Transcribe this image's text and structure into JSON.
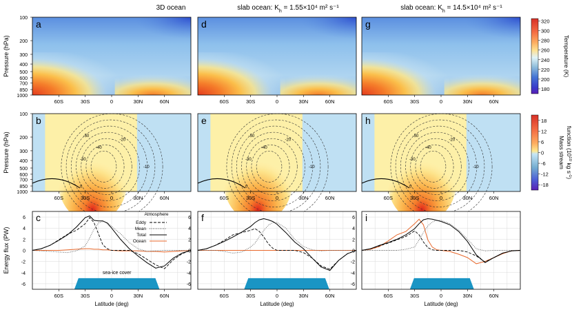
{
  "figure": {
    "column_titles": [
      "3D ocean",
      "slab ocean: K",
      "slab ocean: K"
    ],
    "column_title_parts": [
      {
        "lead": "3D ocean",
        "sub": "",
        "tail": ""
      },
      {
        "lead": "slab ocean: K",
        "sub": "h",
        "tail": " = 1.55×10⁴ m² s⁻¹"
      },
      {
        "lead": "slab ocean: K",
        "sub": "h",
        "tail": " = 14.5×10⁴ m² s⁻¹"
      }
    ],
    "panel_letters": [
      "a",
      "b",
      "c",
      "d",
      "e",
      "f",
      "g",
      "h",
      "i"
    ],
    "colors": {
      "ocean_line": "#e8672a",
      "sea_ice": "#1a95c4",
      "grid": "#d9d9d9"
    }
  },
  "chart_data": [
    {
      "type": "heatmap",
      "row": "temperature",
      "panels": [
        "a",
        "d",
        "g"
      ],
      "xlabel": "",
      "ylabel": "Pressure (hPa)",
      "x_ticks": [
        "60S",
        "30S",
        "0",
        "30N",
        "60N"
      ],
      "y_ticks": [
        100,
        200,
        300,
        400,
        500,
        600,
        700,
        850,
        1000
      ],
      "ylim": [
        1000,
        100
      ],
      "colorbar": {
        "label": "Temperature (K)",
        "ticks": [
          320,
          300,
          280,
          260,
          240,
          220,
          200,
          180
        ],
        "range": [
          170,
          325
        ]
      }
    },
    {
      "type": "heatmap",
      "row": "mass_stream_function",
      "panels": [
        "b",
        "e",
        "h"
      ],
      "xlabel": "",
      "ylabel": "Pressure (hPa)",
      "x_ticks": [
        "60S",
        "30S",
        "0",
        "30N",
        "60N"
      ],
      "y_ticks": [
        100,
        200,
        300,
        400,
        500,
        600,
        700,
        850,
        1000
      ],
      "contour_labels": [
        "-50",
        "-40",
        "-30",
        "-20",
        "-10",
        "0"
      ],
      "colorbar": {
        "label_main": "Mass stream",
        "label_unit": "function (10",
        "label_exp": "10",
        "label_tail": " kg s",
        "label_exp2": "-1",
        "label_close": ")",
        "ticks": [
          18,
          12,
          6,
          0,
          -6,
          -12,
          -18
        ],
        "range": [
          -21,
          21
        ]
      }
    },
    {
      "type": "line",
      "row": "energy_flux",
      "panels": [
        "c",
        "f",
        "i"
      ],
      "xlabel": "Latitude (deg)",
      "ylabel": "Energy flux (PW)",
      "x_ticks": [
        "60S",
        "30S",
        "0",
        "30N",
        "60N"
      ],
      "y_ticks": [
        6,
        4,
        2,
        0,
        -2,
        -4,
        -6
      ],
      "ylim": [
        -7,
        7
      ],
      "xlim": [
        -90,
        90
      ],
      "legend": {
        "header": "Atmosphere",
        "entries": [
          "Eddy",
          "Mean",
          "Total",
          "Ocean"
        ]
      },
      "annotation": "sea-ice cover",
      "series": [
        {
          "panel": "c",
          "x": [
            -90,
            -80,
            -70,
            -60,
            -50,
            -40,
            -30,
            -25,
            -20,
            -15,
            -10,
            -5,
            0,
            10,
            20,
            30,
            40,
            50,
            60,
            70,
            80,
            90
          ],
          "total": [
            0,
            0.3,
            0.9,
            1.8,
            2.8,
            4.2,
            5.9,
            6.2,
            5.4,
            5.3,
            5.3,
            4.9,
            4.0,
            2.0,
            0.3,
            -1.0,
            -2.2,
            -3.2,
            -2.8,
            -1.4,
            -0.5,
            0
          ],
          "eddy": [
            0,
            0.3,
            0.9,
            1.9,
            2.9,
            3.6,
            4.8,
            5.9,
            5.0,
            3.0,
            1.0,
            0.3,
            0,
            0,
            0,
            -0.6,
            -1.6,
            -2.6,
            -3.3,
            -1.7,
            -0.6,
            0
          ],
          "mean": [
            0,
            -0.1,
            -0.2,
            -0.3,
            -0.4,
            -0.1,
            0.8,
            2.2,
            3.8,
            4.9,
            5.2,
            5.0,
            4.3,
            3.0,
            1.4,
            0.3,
            -0.2,
            -0.1,
            0,
            0,
            0,
            0
          ],
          "ocean": [
            0,
            0,
            0,
            0,
            0.1,
            0.2,
            0.3,
            0.3,
            0.2,
            0.2,
            0.1,
            0.1,
            0,
            -0.1,
            -0.1,
            -0.1,
            -0.2,
            -0.2,
            -0.3,
            -0.2,
            -0.1,
            0
          ],
          "sea_ice": [
            -40,
            52
          ]
        },
        {
          "panel": "f",
          "x": [
            -90,
            -80,
            -70,
            -60,
            -50,
            -40,
            -30,
            -25,
            -20,
            -15,
            -10,
            -5,
            0,
            10,
            20,
            30,
            40,
            50,
            60,
            70,
            80,
            90
          ],
          "total": [
            0,
            0.3,
            0.9,
            1.6,
            2.4,
            3.3,
            4.3,
            5.0,
            5.5,
            5.7,
            5.5,
            5.2,
            4.7,
            3.2,
            1.5,
            0.3,
            -1.4,
            -3.0,
            -3.6,
            -1.8,
            -0.6,
            0
          ],
          "eddy": [
            0,
            0.3,
            0.9,
            1.8,
            2.8,
            3.2,
            3.6,
            3.9,
            3.4,
            2.4,
            1.2,
            0.4,
            0,
            0,
            0,
            -0.4,
            -1.4,
            -2.8,
            -3.4,
            -1.8,
            -0.6,
            0
          ],
          "mean": [
            0,
            0,
            0,
            -0.2,
            -0.5,
            -0.3,
            0.6,
            1.3,
            2.5,
            3.6,
            4.5,
            5.0,
            5.0,
            4.0,
            2.0,
            0.7,
            0.1,
            -0.1,
            0,
            0,
            0,
            0
          ],
          "ocean": [
            0,
            0,
            0,
            0,
            0,
            0,
            0,
            0,
            0,
            0,
            0,
            0,
            0,
            0,
            0,
            0,
            0,
            0,
            0,
            0,
            0,
            0
          ],
          "sea_ice": [
            -35,
            57
          ]
        },
        {
          "panel": "i",
          "x": [
            -90,
            -80,
            -70,
            -60,
            -50,
            -40,
            -30,
            -25,
            -20,
            -15,
            -10,
            -5,
            0,
            10,
            20,
            30,
            40,
            50,
            60,
            70,
            80,
            90
          ],
          "total": [
            0,
            0.3,
            0.9,
            1.4,
            2.0,
            2.8,
            3.9,
            4.8,
            5.5,
            5.7,
            5.6,
            5.4,
            5.2,
            4.6,
            3.4,
            1.6,
            -0.8,
            -2.2,
            -1.3,
            -0.5,
            -0.1,
            0
          ],
          "eddy": [
            0,
            0.3,
            0.8,
            1.3,
            1.9,
            2.5,
            3.5,
            2.8,
            1.5,
            0.5,
            0.1,
            0,
            0,
            0,
            0,
            -0.3,
            -1.0,
            -2.1,
            -1.3,
            -0.5,
            -0.1,
            0
          ],
          "mean": [
            0,
            0,
            0,
            0,
            0,
            0.2,
            0.6,
            1.9,
            3.2,
            4.4,
            5.1,
            5.4,
            5.4,
            4.8,
            3.6,
            2.0,
            0.3,
            -0.1,
            0,
            0,
            0,
            0
          ],
          "ocean": [
            0,
            0.2,
            0.7,
            1.7,
            2.8,
            3.4,
            4.8,
            5.6,
            4.6,
            1.9,
            0.6,
            0.1,
            0,
            -0.2,
            -0.7,
            -1.3,
            -2.4,
            -2.0,
            -1.3,
            -0.6,
            -0.1,
            0
          ],
          "sea_ice": [
            -33,
            35
          ]
        }
      ]
    }
  ]
}
